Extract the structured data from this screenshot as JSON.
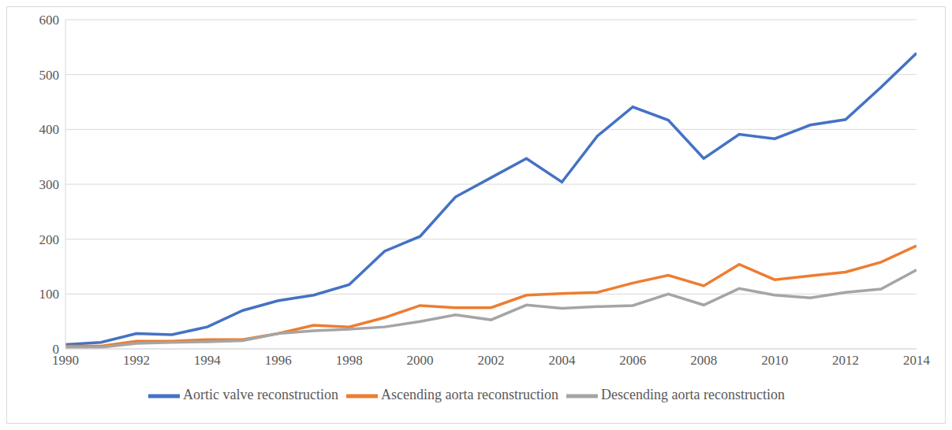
{
  "chart_data": {
    "type": "line",
    "x": [
      1990,
      1991,
      1992,
      1993,
      1994,
      1995,
      1996,
      1997,
      1998,
      1999,
      2000,
      2001,
      2002,
      2003,
      2004,
      2005,
      2006,
      2007,
      2008,
      2009,
      2010,
      2011,
      2012,
      2013,
      2014
    ],
    "series": [
      {
        "name": "Aortic valve reconstruction",
        "color": "#4472c4",
        "values": [
          8,
          12,
          28,
          26,
          40,
          70,
          88,
          98,
          117,
          178,
          205,
          277,
          312,
          347,
          304,
          388,
          441,
          417,
          347,
          391,
          383,
          408,
          418,
          477,
          539
        ]
      },
      {
        "name": "Ascending aorta reconstruction",
        "color": "#ed7d31",
        "values": [
          5,
          5,
          14,
          14,
          17,
          17,
          28,
          43,
          40,
          57,
          79,
          75,
          75,
          98,
          101,
          103,
          120,
          134,
          115,
          154,
          126,
          133,
          140,
          158,
          188
        ]
      },
      {
        "name": "Descending aorta reconstruction",
        "color": "#a5a5a5",
        "values": [
          3,
          3,
          10,
          12,
          13,
          15,
          28,
          33,
          36,
          40,
          50,
          62,
          53,
          80,
          74,
          77,
          79,
          100,
          80,
          110,
          98,
          93,
          103,
          109,
          144
        ]
      }
    ],
    "xlim": [
      1990,
      2014
    ],
    "xticks": [
      1990,
      1992,
      1994,
      1996,
      1998,
      2000,
      2002,
      2004,
      2006,
      2008,
      2010,
      2012,
      2014
    ],
    "ylim": [
      0,
      600
    ],
    "yticks": [
      0,
      100,
      200,
      300,
      400,
      500,
      600
    ],
    "grid": true,
    "legend": "bottom"
  }
}
